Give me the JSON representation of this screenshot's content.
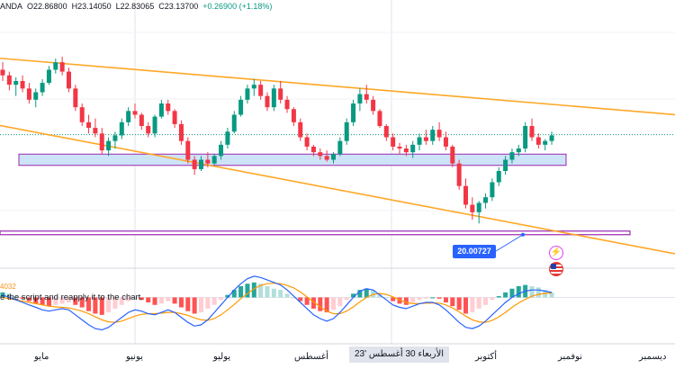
{
  "ohlc_header": {
    "symbol_fragment": "ANDA",
    "open": "O22.86800",
    "high": "H23.14050",
    "low": "L22.83065",
    "close": "C23.13700",
    "change": "+0.26900 (+1.18%)"
  },
  "indicator": {
    "tag": "4032",
    "notice": "e the script and reapply it to the chart."
  },
  "price_badge": "20.00727",
  "x_axis": {
    "labels": [
      "مايو",
      "يونيو",
      "يوليو",
      "أغسطس",
      "أكتوبر",
      "نوفمبر",
      "ديسمبر"
    ],
    "crosshair_label": "الأربعاء 30 أغسطس '23"
  },
  "icons": [
    "flash-icon",
    "us-flag-icon"
  ],
  "colors": {
    "up": "#089981",
    "down": "#f23645",
    "channel": "#ffa726",
    "zone_fill": "#cde3f7",
    "zone_border": "#9c27b0",
    "macd_line": "#2962ff",
    "signal_line": "#ff9800",
    "hist_up_strong": "#26a69a",
    "hist_up_weak": "#b2dfdb",
    "hist_down_strong": "#ff5252",
    "hist_down_weak": "#ffcdd2"
  },
  "chart_data": {
    "type": "candlestick",
    "price_range": [
      19.6,
      25.0
    ],
    "candles": [
      [
        24.1,
        24.3,
        23.8,
        23.95
      ],
      [
        23.95,
        24.05,
        23.55,
        23.7
      ],
      [
        23.7,
        23.9,
        23.4,
        23.8
      ],
      [
        23.8,
        23.95,
        23.5,
        23.6
      ],
      [
        23.6,
        23.75,
        23.2,
        23.3
      ],
      [
        23.3,
        23.6,
        23.1,
        23.5
      ],
      [
        23.5,
        23.85,
        23.4,
        23.75
      ],
      [
        23.75,
        24.2,
        23.7,
        24.1
      ],
      [
        24.1,
        24.4,
        24.0,
        24.3
      ],
      [
        24.3,
        24.45,
        23.95,
        24.05
      ],
      [
        24.05,
        24.15,
        23.5,
        23.6
      ],
      [
        23.6,
        23.7,
        23.0,
        23.1
      ],
      [
        23.1,
        23.2,
        22.6,
        22.7
      ],
      [
        22.7,
        22.9,
        22.4,
        22.55
      ],
      [
        22.55,
        22.8,
        22.3,
        22.4
      ],
      [
        22.4,
        22.55,
        21.85,
        21.95
      ],
      [
        21.95,
        22.3,
        21.8,
        22.2
      ],
      [
        22.2,
        22.45,
        22.0,
        22.35
      ],
      [
        22.35,
        22.8,
        22.25,
        22.7
      ],
      [
        22.7,
        23.1,
        22.6,
        23.0
      ],
      [
        23.0,
        23.2,
        22.8,
        22.9
      ],
      [
        22.9,
        22.95,
        22.5,
        22.6
      ],
      [
        22.6,
        22.7,
        22.3,
        22.4
      ],
      [
        22.4,
        22.9,
        22.3,
        22.85
      ],
      [
        22.85,
        23.3,
        22.8,
        23.2
      ],
      [
        23.2,
        23.3,
        22.9,
        23.0
      ],
      [
        23.0,
        23.05,
        22.55,
        22.65
      ],
      [
        22.65,
        22.75,
        22.1,
        22.2
      ],
      [
        22.2,
        22.3,
        21.6,
        21.7
      ],
      [
        21.7,
        21.8,
        21.3,
        21.45
      ],
      [
        21.45,
        21.8,
        21.4,
        21.7
      ],
      [
        21.7,
        21.9,
        21.5,
        21.6
      ],
      [
        21.6,
        21.85,
        21.55,
        21.8
      ],
      [
        21.8,
        22.2,
        21.7,
        22.1
      ],
      [
        22.1,
        22.55,
        22.0,
        22.45
      ],
      [
        22.45,
        23.0,
        22.4,
        22.9
      ],
      [
        22.9,
        23.4,
        22.85,
        23.3
      ],
      [
        23.3,
        23.7,
        23.2,
        23.6
      ],
      [
        23.6,
        23.85,
        23.4,
        23.7
      ],
      [
        23.7,
        23.8,
        23.3,
        23.4
      ],
      [
        23.4,
        23.5,
        23.0,
        23.1
      ],
      [
        23.1,
        23.7,
        23.0,
        23.6
      ],
      [
        23.6,
        23.8,
        23.2,
        23.3
      ],
      [
        23.3,
        23.4,
        22.95,
        23.05
      ],
      [
        23.05,
        23.1,
        22.6,
        22.7
      ],
      [
        22.7,
        22.8,
        22.2,
        22.3
      ],
      [
        22.3,
        22.4,
        21.95,
        22.05
      ],
      [
        22.05,
        22.1,
        21.8,
        21.9
      ],
      [
        21.9,
        22.0,
        21.7,
        21.8
      ],
      [
        21.8,
        21.95,
        21.65,
        21.7
      ],
      [
        21.7,
        21.9,
        21.6,
        21.85
      ],
      [
        21.85,
        22.3,
        21.8,
        22.2
      ],
      [
        22.2,
        22.8,
        22.1,
        22.7
      ],
      [
        22.7,
        23.3,
        22.6,
        23.2
      ],
      [
        23.2,
        23.6,
        23.0,
        23.45
      ],
      [
        23.45,
        23.7,
        23.2,
        23.3
      ],
      [
        23.3,
        23.4,
        22.9,
        23.0
      ],
      [
        23.0,
        23.05,
        22.55,
        22.6
      ],
      [
        22.6,
        22.65,
        22.2,
        22.3
      ],
      [
        22.3,
        22.4,
        21.95,
        22.05
      ],
      [
        22.05,
        22.15,
        21.85,
        22.0
      ],
      [
        22.0,
        22.1,
        21.8,
        21.9
      ],
      [
        21.9,
        22.2,
        21.75,
        22.1
      ],
      [
        22.1,
        22.4,
        21.95,
        22.3
      ],
      [
        22.3,
        22.5,
        22.1,
        22.2
      ],
      [
        22.2,
        22.6,
        22.1,
        22.5
      ],
      [
        22.5,
        22.7,
        22.2,
        22.3
      ],
      [
        22.3,
        22.45,
        21.95,
        22.05
      ],
      [
        22.05,
        22.1,
        21.5,
        21.6
      ],
      [
        21.6,
        21.7,
        20.9,
        21.0
      ],
      [
        21.0,
        21.2,
        20.4,
        20.5
      ],
      [
        20.5,
        20.7,
        20.1,
        20.3
      ],
      [
        20.3,
        20.6,
        20.0,
        20.55
      ],
      [
        20.55,
        20.8,
        20.4,
        20.7
      ],
      [
        20.7,
        21.2,
        20.6,
        21.1
      ],
      [
        21.1,
        21.5,
        21.0,
        21.4
      ],
      [
        21.4,
        21.8,
        21.3,
        21.7
      ],
      [
        21.7,
        22.0,
        21.6,
        21.9
      ],
      [
        21.9,
        22.1,
        21.8,
        22.0
      ],
      [
        22.0,
        22.7,
        21.9,
        22.6
      ],
      [
        22.6,
        22.8,
        22.2,
        22.3
      ],
      [
        22.3,
        22.4,
        22.0,
        22.1
      ],
      [
        22.1,
        22.25,
        21.95,
        22.2
      ],
      [
        22.2,
        22.45,
        22.1,
        22.35
      ]
    ],
    "channel_upper": {
      "from": [
        0,
        24.4
      ],
      "to": [
        95,
        23.0
      ]
    },
    "channel_lower": {
      "from": [
        0,
        22.6
      ],
      "to": [
        88,
        19.65
      ]
    },
    "support_zone": [
      21.55,
      21.85
    ],
    "horizontal_level": 19.75,
    "dotted_level": 22.37,
    "macd": {
      "histogram": [
        0.2,
        0.15,
        0.05,
        -0.05,
        -0.15,
        -0.25,
        -0.3,
        -0.35,
        -0.3,
        -0.25,
        -0.2,
        -0.3,
        -0.4,
        -0.55,
        -0.65,
        -0.7,
        -0.6,
        -0.45,
        -0.3,
        -0.15,
        -0.05,
        -0.1,
        -0.2,
        -0.3,
        -0.25,
        -0.15,
        -0.25,
        -0.4,
        -0.55,
        -0.65,
        -0.6,
        -0.45,
        -0.3,
        -0.1,
        0.1,
        0.3,
        0.45,
        0.55,
        0.6,
        0.55,
        0.45,
        0.35,
        0.3,
        0.15,
        0.0,
        -0.15,
        -0.3,
        -0.45,
        -0.55,
        -0.6,
        -0.5,
        -0.35,
        -0.1,
        0.15,
        0.3,
        0.35,
        0.3,
        0.15,
        0.0,
        -0.15,
        -0.25,
        -0.3,
        -0.2,
        -0.1,
        -0.05,
        0.0,
        -0.05,
        -0.2,
        -0.35,
        -0.5,
        -0.65,
        -0.6,
        -0.45,
        -0.3,
        -0.1,
        0.05,
        0.2,
        0.35,
        0.45,
        0.5,
        0.45,
        0.4,
        0.3,
        0.2
      ],
      "macd_line": [
        0.1,
        0.0,
        -0.1,
        -0.2,
        -0.3,
        -0.4,
        -0.5,
        -0.55,
        -0.5,
        -0.45,
        -0.5,
        -0.7,
        -0.9,
        -1.1,
        -1.25,
        -1.3,
        -1.2,
        -1.0,
        -0.8,
        -0.6,
        -0.5,
        -0.55,
        -0.65,
        -0.7,
        -0.6,
        -0.5,
        -0.6,
        -0.8,
        -1.0,
        -1.15,
        -1.1,
        -0.9,
        -0.6,
        -0.3,
        0.0,
        0.3,
        0.55,
        0.75,
        0.85,
        0.8,
        0.7,
        0.6,
        0.5,
        0.3,
        0.05,
        -0.2,
        -0.45,
        -0.7,
        -0.85,
        -0.95,
        -0.85,
        -0.6,
        -0.3,
        0.0,
        0.25,
        0.35,
        0.3,
        0.1,
        -0.1,
        -0.3,
        -0.4,
        -0.45,
        -0.35,
        -0.25,
        -0.2,
        -0.2,
        -0.3,
        -0.5,
        -0.75,
        -1.0,
        -1.2,
        -1.25,
        -1.15,
        -0.95,
        -0.7,
        -0.45,
        -0.2,
        0.0,
        0.15,
        0.25,
        0.3,
        0.3,
        0.25,
        0.2
      ],
      "signal_line": [
        0.0,
        -0.05,
        -0.1,
        -0.15,
        -0.2,
        -0.25,
        -0.3,
        -0.35,
        -0.38,
        -0.4,
        -0.42,
        -0.48,
        -0.55,
        -0.65,
        -0.78,
        -0.9,
        -0.98,
        -1.0,
        -0.95,
        -0.85,
        -0.75,
        -0.68,
        -0.65,
        -0.65,
        -0.63,
        -0.6,
        -0.6,
        -0.65,
        -0.72,
        -0.82,
        -0.9,
        -0.92,
        -0.85,
        -0.7,
        -0.5,
        -0.28,
        -0.05,
        0.15,
        0.35,
        0.48,
        0.55,
        0.57,
        0.55,
        0.48,
        0.38,
        0.22,
        0.02,
        -0.18,
        -0.38,
        -0.55,
        -0.65,
        -0.65,
        -0.55,
        -0.38,
        -0.18,
        0.0,
        0.12,
        0.16,
        0.12,
        0.02,
        -0.1,
        -0.2,
        -0.25,
        -0.25,
        -0.23,
        -0.22,
        -0.23,
        -0.3,
        -0.42,
        -0.58,
        -0.75,
        -0.9,
        -0.98,
        -1.0,
        -0.92,
        -0.78,
        -0.6,
        -0.4,
        -0.22,
        -0.08,
        0.05,
        0.12,
        0.16,
        0.18
      ],
      "range": [
        -1.5,
        1.1
      ]
    }
  }
}
